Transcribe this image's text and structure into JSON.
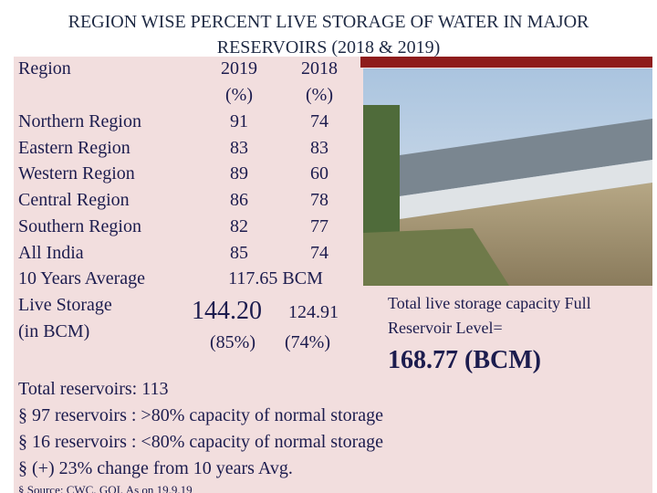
{
  "title": "REGION WISE  PERCENT LIVE STORAGE OF WATER IN MAJOR RESERVOIRS (2018 & 2019)",
  "table": {
    "header": [
      "Region",
      "2019",
      "2018"
    ],
    "units": [
      "(%)",
      "(%)"
    ],
    "rows": [
      [
        "Northern Region",
        91,
        74
      ],
      [
        "Eastern Region",
        83,
        83
      ],
      [
        "Western Region",
        89,
        60
      ],
      [
        "Central Region",
        86,
        78
      ],
      [
        "Southern Region",
        82,
        77
      ],
      [
        "All India",
        85,
        74
      ]
    ],
    "average": {
      "label": "10 Years Average",
      "value": "117.65 BCM"
    },
    "live_storage": {
      "label": [
        "Live Storage",
        "(in BCM)"
      ],
      "values": [
        "144.20",
        "124.91"
      ],
      "percents": [
        "(85%)",
        "(74%)"
      ]
    }
  },
  "capacity": {
    "label": [
      "Total live storage capacity Full",
      "Reservoir Level="
    ],
    "value": "168.77 (BCM)"
  },
  "summary": {
    "total": "Total reservoirs:  113",
    "bullets": [
      "§ 97 reservoirs   : >80% capacity of normal storage",
      "§ 16 reservoirs   : <80% capacity of normal storage",
      "§ (+) 23% change from 10 years Avg."
    ]
  },
  "source": "§ Source: CWC, GOI, As on 19.9.19"
}
